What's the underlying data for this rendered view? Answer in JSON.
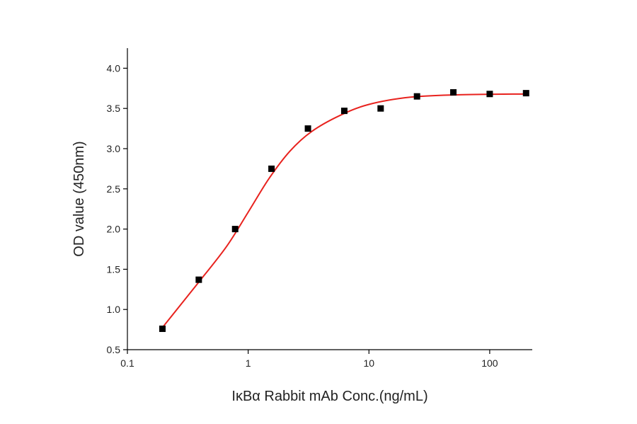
{
  "chart_data": {
    "type": "scatter",
    "xlabel": "IκBα Rabbit mAb Conc.(ng/mL)",
    "ylabel": "OD value (450nm)",
    "xscale": "log",
    "xlim": [
      0.1,
      225
    ],
    "ylim": [
      0.5,
      4.25
    ],
    "xticks": [
      0.1,
      1,
      10,
      100
    ],
    "yticks": [
      0.5,
      {
        "value": 1,
        "label": "1.0"
      },
      1.5,
      {
        "value": 2,
        "label": "2.0"
      },
      2.5,
      {
        "value": 3,
        "label": "3.0"
      },
      3.5,
      {
        "value": 4,
        "label": "4.0"
      }
    ],
    "grid": false,
    "series": [
      {
        "type": "scatter",
        "color": "#000000",
        "x": [
          0.195,
          0.39,
          0.78,
          1.56,
          3.125,
          6.25,
          12.5,
          25,
          50,
          100,
          200
        ],
        "values": [
          0.76,
          1.37,
          2.0,
          2.75,
          3.25,
          3.47,
          3.5,
          3.65,
          3.7,
          3.68,
          3.69
        ]
      },
      {
        "type": "line",
        "color": "#e8221e",
        "x": [
          0.196,
          0.385,
          0.66,
          1,
          1.49,
          2.22,
          3.33,
          5.7,
          10,
          22,
          56,
          200
        ],
        "values": [
          0.78,
          1.33,
          1.78,
          2.21,
          2.63,
          2.97,
          3.21,
          3.41,
          3.55,
          3.64,
          3.67,
          3.68
        ]
      }
    ]
  }
}
